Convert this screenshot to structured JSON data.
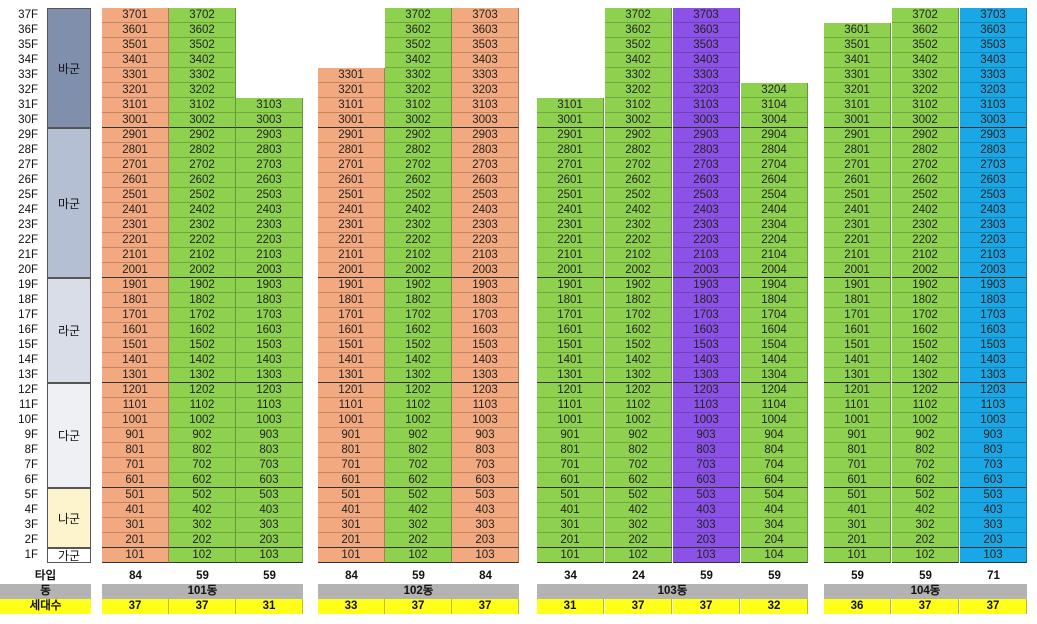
{
  "colors": {
    "orange": "#f2a97f",
    "green": "#8ed14f",
    "purple": "#8c52e8",
    "blue": "#1aa7e6",
    "ga": "#ffffff",
    "na": "#fdf3cc",
    "da": "#eef0f4",
    "ra": "#d9dde7",
    "ma": "#b5bfd3",
    "ba": "#7f8fac",
    "gray": "#b3b3b3",
    "yellow": "#ffff1a"
  },
  "floors": [
    "37F",
    "36F",
    "35F",
    "34F",
    "33F",
    "32F",
    "31F",
    "30F",
    "29F",
    "28F",
    "27F",
    "26F",
    "25F",
    "24F",
    "23F",
    "22F",
    "21F",
    "20F",
    "19F",
    "18F",
    "17F",
    "16F",
    "15F",
    "14F",
    "13F",
    "12F",
    "11F",
    "10F",
    "9F",
    "8F",
    "7F",
    "6F",
    "5F",
    "4F",
    "3F",
    "2F",
    "1F"
  ],
  "groups": [
    {
      "label": "바군",
      "from": 30,
      "to": 37,
      "color": "ba"
    },
    {
      "label": "마군",
      "from": 20,
      "to": 29,
      "color": "ma"
    },
    {
      "label": "라군",
      "from": 13,
      "to": 19,
      "color": "ra"
    },
    {
      "label": "다군",
      "from": 6,
      "to": 12,
      "color": "da"
    },
    {
      "label": "나군",
      "from": 2,
      "to": 5,
      "color": "na"
    },
    {
      "label": "가군",
      "from": 1,
      "to": 1,
      "color": "ga"
    }
  ],
  "buildings": [
    {
      "name": "101동",
      "columns": [
        {
          "unit": "01",
          "top": 37,
          "color": "orange",
          "type": "84",
          "households": "37"
        },
        {
          "unit": "02",
          "top": 37,
          "color": "green",
          "type": "59",
          "households": "37"
        },
        {
          "unit": "03",
          "top": 31,
          "color": "green",
          "type": "59",
          "households": "31"
        }
      ]
    },
    {
      "name": "102동",
      "columns": [
        {
          "unit": "01",
          "top": 33,
          "color": "orange",
          "type": "84",
          "households": "33"
        },
        {
          "unit": "02",
          "top": 37,
          "color": "green",
          "type": "59",
          "households": "37"
        },
        {
          "unit": "03",
          "top": 37,
          "color": "orange",
          "type": "84",
          "households": "37"
        }
      ]
    },
    {
      "name": "103동",
      "columns": [
        {
          "unit": "01",
          "top": 31,
          "color": "green",
          "type": "34",
          "households": "31"
        },
        {
          "unit": "02",
          "top": 37,
          "color": "green",
          "type": "24",
          "households": "37"
        },
        {
          "unit": "03",
          "top": 37,
          "color": "purple",
          "type": "59",
          "households": "37"
        },
        {
          "unit": "04",
          "top": 32,
          "color": "green",
          "type": "59",
          "households": "32"
        }
      ]
    },
    {
      "name": "104동",
      "columns": [
        {
          "unit": "01",
          "top": 36,
          "color": "green",
          "type": "59",
          "households": "36"
        },
        {
          "unit": "02",
          "top": 37,
          "color": "green",
          "type": "59",
          "households": "37"
        },
        {
          "unit": "03",
          "top": 37,
          "color": "blue",
          "type": "71",
          "households": "37"
        }
      ]
    }
  ],
  "labels": {
    "type": "타입",
    "building": "동",
    "households": "세대수"
  }
}
